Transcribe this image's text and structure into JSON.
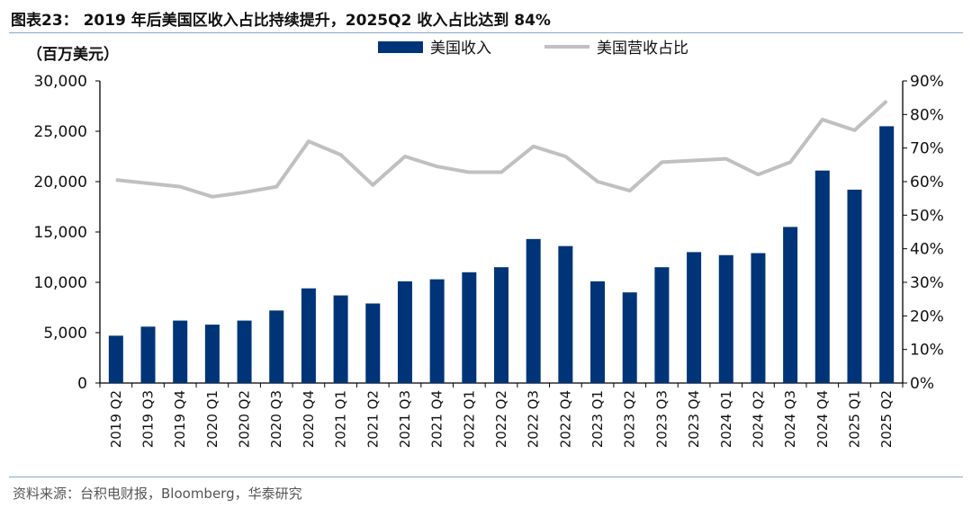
{
  "title": "图表23：  2019 年后美国区收入占比持续提升，2025Q2 收入占比达到 84%",
  "source": "资料来源：台积电财报，Bloomberg，华泰研究",
  "chart_data": {
    "type": "bar+line",
    "unit_label": "（百万美元）",
    "categories": [
      "2019 Q2",
      "2019 Q3",
      "2019 Q4",
      "2020 Q1",
      "2020 Q2",
      "2020 Q3",
      "2020 Q4",
      "2021 Q1",
      "2021 Q2",
      "2021 Q3",
      "2021 Q4",
      "2022 Q1",
      "2022 Q2",
      "2022 Q3",
      "2022 Q4",
      "2023 Q1",
      "2023 Q2",
      "2023 Q3",
      "2023 Q4",
      "2024 Q1",
      "2024 Q2",
      "2024 Q3",
      "2024 Q4",
      "2025 Q1",
      "2025 Q2"
    ],
    "series": [
      {
        "name": "美国收入",
        "type": "bar",
        "axis": "left",
        "color": "#003478",
        "values": [
          4700,
          5600,
          6200,
          5800,
          6200,
          7200,
          9400,
          8700,
          7900,
          10100,
          10300,
          11000,
          11500,
          14300,
          13600,
          10100,
          9000,
          11500,
          13000,
          12700,
          12900,
          15500,
          21100,
          19200,
          25500
        ]
      },
      {
        "name": "美国营收占比",
        "type": "line",
        "axis": "right",
        "color": "#c0c0c0",
        "values": [
          60.5,
          59.5,
          58.5,
          55.5,
          56.8,
          58.5,
          72,
          68,
          59,
          67.5,
          64.5,
          62.8,
          62.8,
          70.5,
          67.5,
          60,
          57.3,
          65.8,
          66.3,
          66.8,
          62.1,
          65.8,
          78.5,
          75.3,
          84
        ]
      }
    ],
    "left_axis": {
      "ylim": [
        0,
        30000
      ],
      "ticks": [
        "0",
        "5,000",
        "10,000",
        "15,000",
        "20,000",
        "25,000",
        "30,000"
      ]
    },
    "right_axis": {
      "ylim": [
        0,
        90
      ],
      "ticks": [
        "0%",
        "10%",
        "20%",
        "30%",
        "40%",
        "50%",
        "60%",
        "70%",
        "80%",
        "90%"
      ]
    },
    "legend": "top",
    "grid": false
  }
}
